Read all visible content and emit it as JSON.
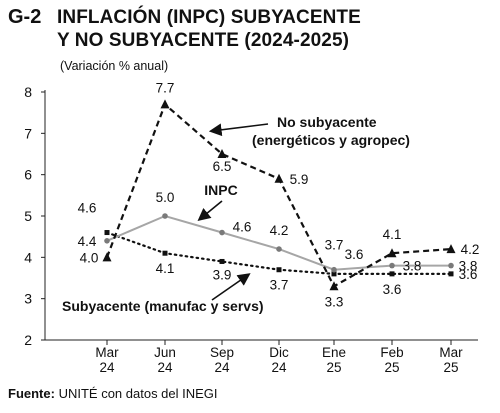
{
  "header": {
    "code": "G-2",
    "title_line1": "INFLACIÓN (INPC) SUBYACENTE",
    "title_line2": "Y NO SUBYACENTE (2024-2025)",
    "subtitle": "(Variación % anual)"
  },
  "footer": {
    "source_label": "Fuente:",
    "source_text": "UNITÉ con datos del INEGI"
  },
  "colors": {
    "axis": "#222222",
    "grid": "#d6d6d6",
    "inpc": "#a6a6a6",
    "dark": "#111111"
  },
  "chart_data": {
    "type": "line",
    "title": "INFLACIÓN (INPC) SUBYACENTE Y NO SUBYACENTE (2024-2025)",
    "subtitle": "(Variación % anual)",
    "categories": [
      [
        "Mar",
        "24"
      ],
      [
        "Jun",
        "24"
      ],
      [
        "Sep",
        "24"
      ],
      [
        "Dic",
        "24"
      ],
      [
        "Ene",
        "25"
      ],
      [
        "Feb",
        "25"
      ],
      [
        "Mar",
        "25"
      ]
    ],
    "y_ticks": [
      "2",
      "3",
      "4",
      "5",
      "6",
      "7",
      "8"
    ],
    "ylim": [
      2,
      8
    ],
    "grid": false,
    "series": [
      {
        "name": "No subyacente (energéticos y agropec)",
        "label_lines": [
          "No subyacente",
          "(energéticos y agropec)"
        ],
        "style": "dashed",
        "marker": "triangle",
        "values": [
          4.0,
          7.7,
          6.5,
          5.9,
          3.3,
          4.1,
          4.2
        ],
        "value_labels": [
          "4.0",
          "7.7",
          "6.5",
          "5.9",
          "3.3",
          "4.1",
          "4.2"
        ]
      },
      {
        "name": "INPC",
        "label_lines": [
          "INPC"
        ],
        "style": "solid",
        "marker": "circle",
        "values": [
          4.4,
          5.0,
          4.6,
          4.2,
          3.7,
          3.8,
          3.8
        ],
        "value_labels": [
          "4.4",
          "5.0",
          "4.6",
          "4.2",
          "3.7",
          "3.8",
          "3.8"
        ]
      },
      {
        "name": "Subyacente (manufac y servs)",
        "label_lines": [
          "Subyacente (manufac y servs)"
        ],
        "style": "dotted",
        "marker": "square",
        "values": [
          4.6,
          4.1,
          3.9,
          3.7,
          3.6,
          3.6,
          3.6
        ],
        "value_labels": [
          "4.6",
          "4.1",
          "3.9",
          "3.7",
          "3.6",
          "3.6",
          "3.6"
        ]
      }
    ]
  }
}
